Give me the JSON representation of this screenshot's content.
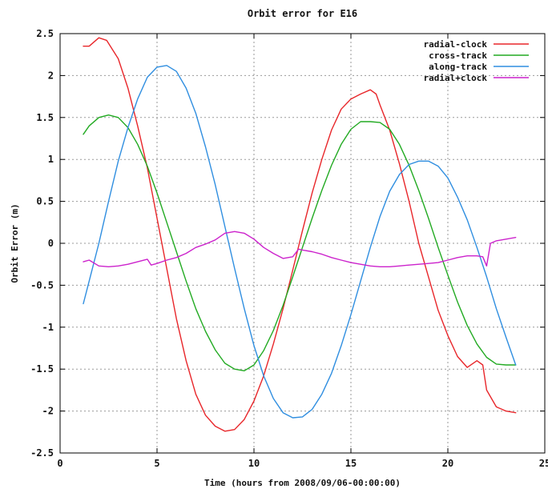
{
  "chart_data": {
    "type": "line",
    "title": "Orbit error for E16",
    "xlabel": "Time (hours from 2008/09/06-00:00:00)",
    "ylabel": "Orbit Error (m)",
    "xlim": [
      0,
      25
    ],
    "ylim": [
      -2.5,
      2.5
    ],
    "xticks": [
      "0",
      "5",
      "10",
      "15",
      "20",
      "25"
    ],
    "yticks": [
      "2.5",
      "2",
      "1.5",
      "1",
      "0.5",
      "0",
      "-0.5",
      "-1",
      "-1.5",
      "-2",
      "-2.5"
    ],
    "grid": true,
    "legend_position": "top-right",
    "series": [
      {
        "name": "radial-clock",
        "color": "#e8262a",
        "x": [
          1.2,
          1.5,
          2.0,
          2.4,
          3.0,
          3.5,
          4.0,
          4.5,
          5.0,
          5.5,
          6.0,
          6.5,
          7.0,
          7.5,
          8.0,
          8.5,
          9.0,
          9.5,
          10.0,
          10.5,
          11.0,
          11.5,
          12.0,
          12.5,
          13.0,
          13.5,
          14.0,
          14.5,
          15.0,
          15.5,
          16.0,
          16.3,
          16.5,
          17.0,
          17.5,
          18.0,
          18.5,
          19.0,
          19.5,
          20.0,
          20.5,
          21.0,
          21.5,
          21.8,
          22.0,
          22.5,
          23.0,
          23.5
        ],
        "y": [
          2.35,
          2.35,
          2.45,
          2.42,
          2.2,
          1.85,
          1.4,
          0.9,
          0.3,
          -0.3,
          -0.9,
          -1.4,
          -1.8,
          -2.05,
          -2.18,
          -2.24,
          -2.22,
          -2.1,
          -1.88,
          -1.58,
          -1.2,
          -0.78,
          -0.32,
          0.15,
          0.6,
          1.0,
          1.35,
          1.6,
          1.72,
          1.78,
          1.83,
          1.78,
          1.65,
          1.35,
          0.95,
          0.5,
          0.0,
          -0.4,
          -0.8,
          -1.1,
          -1.35,
          -1.48,
          -1.4,
          -1.45,
          -1.75,
          -1.95,
          -2.0,
          -2.02
        ]
      },
      {
        "name": "cross-track",
        "color": "#22aa22",
        "x": [
          1.2,
          1.5,
          2.0,
          2.5,
          3.0,
          3.5,
          4.0,
          4.5,
          5.0,
          5.5,
          6.0,
          6.5,
          7.0,
          7.5,
          8.0,
          8.5,
          9.0,
          9.5,
          10.0,
          10.5,
          11.0,
          11.5,
          12.0,
          12.5,
          13.0,
          13.5,
          14.0,
          14.5,
          15.0,
          15.5,
          16.0,
          16.5,
          17.0,
          17.5,
          18.0,
          18.5,
          19.0,
          19.5,
          20.0,
          20.5,
          21.0,
          21.5,
          22.0,
          22.5,
          23.0,
          23.5
        ],
        "y": [
          1.3,
          1.4,
          1.5,
          1.53,
          1.5,
          1.38,
          1.18,
          0.92,
          0.6,
          0.25,
          -0.1,
          -0.45,
          -0.78,
          -1.05,
          -1.27,
          -1.43,
          -1.5,
          -1.52,
          -1.45,
          -1.28,
          -1.04,
          -0.74,
          -0.4,
          -0.05,
          0.3,
          0.63,
          0.93,
          1.18,
          1.36,
          1.45,
          1.45,
          1.44,
          1.36,
          1.18,
          0.93,
          0.63,
          0.3,
          -0.05,
          -0.38,
          -0.7,
          -0.98,
          -1.2,
          -1.36,
          -1.44,
          -1.45,
          -1.45
        ]
      },
      {
        "name": "along-track",
        "color": "#2f8ee0",
        "x": [
          1.2,
          1.5,
          2.0,
          2.5,
          3.0,
          3.5,
          4.0,
          4.5,
          5.0,
          5.5,
          6.0,
          6.5,
          7.0,
          7.5,
          8.0,
          8.5,
          9.0,
          9.5,
          10.0,
          10.5,
          11.0,
          11.5,
          12.0,
          12.5,
          13.0,
          13.5,
          14.0,
          14.5,
          15.0,
          15.5,
          16.0,
          16.5,
          17.0,
          17.5,
          18.0,
          18.5,
          19.0,
          19.5,
          20.0,
          20.5,
          21.0,
          21.5,
          22.0,
          22.5,
          23.0,
          23.5
        ],
        "y": [
          -0.72,
          -0.45,
          0.0,
          0.5,
          0.98,
          1.38,
          1.72,
          1.98,
          2.1,
          2.12,
          2.05,
          1.85,
          1.55,
          1.15,
          0.7,
          0.2,
          -0.3,
          -0.78,
          -1.22,
          -1.58,
          -1.85,
          -2.02,
          -2.08,
          -2.07,
          -1.98,
          -1.8,
          -1.55,
          -1.22,
          -0.85,
          -0.45,
          -0.05,
          0.32,
          0.62,
          0.82,
          0.94,
          0.98,
          0.98,
          0.92,
          0.78,
          0.55,
          0.28,
          -0.05,
          -0.4,
          -0.78,
          -1.12,
          -1.45
        ]
      },
      {
        "name": "radial+clock",
        "color": "#cc22cc",
        "x": [
          1.2,
          1.5,
          2.0,
          2.5,
          3.0,
          3.5,
          4.0,
          4.5,
          4.7,
          5.0,
          5.5,
          6.0,
          6.5,
          7.0,
          7.5,
          8.0,
          8.5,
          9.0,
          9.5,
          10.0,
          10.5,
          11.0,
          11.5,
          12.0,
          12.3,
          12.5,
          13.0,
          13.5,
          14.0,
          14.5,
          15.0,
          15.5,
          16.0,
          16.5,
          17.0,
          17.5,
          18.0,
          18.5,
          19.0,
          19.5,
          20.0,
          20.5,
          21.0,
          21.5,
          21.8,
          22.0,
          22.2,
          22.5,
          23.0,
          23.5
        ],
        "y": [
          -0.22,
          -0.2,
          -0.27,
          -0.28,
          -0.27,
          -0.25,
          -0.22,
          -0.19,
          -0.26,
          -0.24,
          -0.2,
          -0.17,
          -0.12,
          -0.05,
          -0.01,
          0.04,
          0.12,
          0.14,
          0.12,
          0.05,
          -0.05,
          -0.12,
          -0.18,
          -0.16,
          -0.07,
          -0.08,
          -0.1,
          -0.13,
          -0.17,
          -0.2,
          -0.23,
          -0.25,
          -0.27,
          -0.28,
          -0.28,
          -0.27,
          -0.26,
          -0.25,
          -0.24,
          -0.23,
          -0.2,
          -0.17,
          -0.15,
          -0.15,
          -0.16,
          -0.27,
          0.0,
          0.03,
          0.05,
          0.07
        ]
      }
    ]
  }
}
